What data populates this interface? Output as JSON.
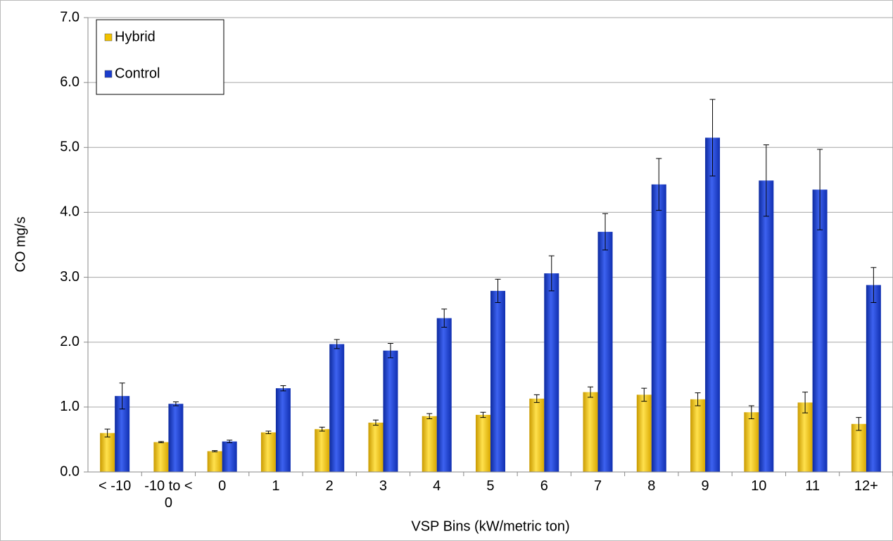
{
  "chart_data": {
    "type": "bar",
    "x_label": "VSP Bins (kW/metric ton)",
    "y_label": "CO mg/s",
    "categories": [
      "< -10",
      "-10 to < 0",
      "0",
      "1",
      "2",
      "3",
      "4",
      "5",
      "6",
      "7",
      "8",
      "9",
      "10",
      "11",
      "12+"
    ],
    "series": [
      {
        "name": "Hybrid",
        "color": "#f2c200",
        "values": [
          0.6,
          0.46,
          0.32,
          0.61,
          0.66,
          0.76,
          0.86,
          0.88,
          1.13,
          1.23,
          1.19,
          1.12,
          0.92,
          1.07,
          0.74
        ],
        "errors": [
          0.06,
          0.01,
          0.01,
          0.02,
          0.03,
          0.04,
          0.04,
          0.04,
          0.06,
          0.08,
          0.1,
          0.1,
          0.1,
          0.16,
          0.1
        ]
      },
      {
        "name": "Control",
        "color": "#1a3ccc",
        "values": [
          1.17,
          1.05,
          0.47,
          1.29,
          1.97,
          1.87,
          2.37,
          2.79,
          3.06,
          3.7,
          4.43,
          5.15,
          4.49,
          4.35,
          2.88
        ],
        "errors": [
          0.2,
          0.03,
          0.02,
          0.04,
          0.07,
          0.11,
          0.14,
          0.18,
          0.27,
          0.28,
          0.4,
          0.59,
          0.55,
          0.62,
          0.27
        ]
      }
    ],
    "ylim": [
      0,
      7
    ],
    "yticks": [
      {
        "value": 0,
        "label": "0.0"
      },
      {
        "value": 1,
        "label": "1.0"
      },
      {
        "value": 2,
        "label": "2.0"
      },
      {
        "value": 3,
        "label": "3.0"
      },
      {
        "value": 4,
        "label": "4.0"
      },
      {
        "value": 5,
        "label": "5.0"
      },
      {
        "value": 6,
        "label": "6.0"
      },
      {
        "value": 7,
        "label": "7.0"
      }
    ],
    "grid": true,
    "legend": "top-left"
  }
}
